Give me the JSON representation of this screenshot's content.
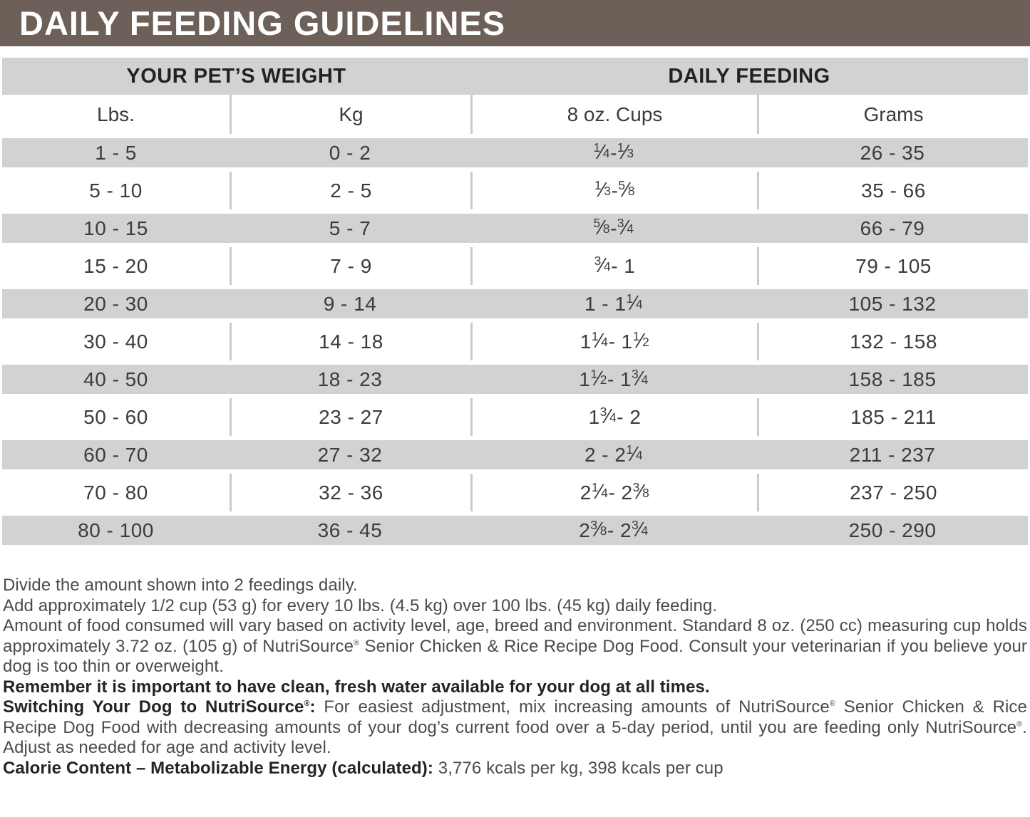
{
  "title": "DAILY FEEDING GUIDELINES",
  "colors": {
    "header_brown": "#6c6058",
    "row_gray": "#d1d2d4",
    "separator_gray": "#c9cacc",
    "title_text": "#ffffff"
  },
  "table": {
    "group_headers": [
      "YOUR PET’S WEIGHT",
      "DAILY FEEDING"
    ],
    "column_headers": [
      "Lbs.",
      "Kg",
      "8 oz. Cups",
      "Grams"
    ],
    "rows": [
      {
        "lbs": "1 - 5",
        "kg": "0 - 2",
        "cups": "1/4 - 1/3",
        "grams": "26 - 35"
      },
      {
        "lbs": "5 - 10",
        "kg": "2 - 5",
        "cups": "1/3 - 5/8",
        "grams": "35 - 66"
      },
      {
        "lbs": "10 - 15",
        "kg": "5 - 7",
        "cups": "5/8 - 3/4",
        "grams": "66 - 79"
      },
      {
        "lbs": "15 - 20",
        "kg": "7 - 9",
        "cups": "3/4 - 1",
        "grams": "79 - 105"
      },
      {
        "lbs": "20 - 30",
        "kg": "9 - 14",
        "cups": "1 - 1 1/4",
        "grams": "105 - 132"
      },
      {
        "lbs": "30 - 40",
        "kg": "14 - 18",
        "cups": "1 1/4 - 1 1/2",
        "grams": "132 - 158"
      },
      {
        "lbs": "40 - 50",
        "kg": "18 - 23",
        "cups": "1 1/2 - 1 3/4",
        "grams": "158 - 185"
      },
      {
        "lbs": "50 - 60",
        "kg": "23 - 27",
        "cups": "1 3/4 - 2",
        "grams": "185 - 211"
      },
      {
        "lbs": "60 - 70",
        "kg": "27 - 32",
        "cups": "2 - 2 1/4",
        "grams": "211 - 237"
      },
      {
        "lbs": "70 - 80",
        "kg": "32 - 36",
        "cups": "2 1/4 - 2 3/8",
        "grams": "237 - 250"
      },
      {
        "lbs": "80 - 100",
        "kg": "36 - 45",
        "cups": "2 3/8 - 2 3/4",
        "grams": "250 - 290"
      }
    ]
  },
  "notes": {
    "divide": [
      {
        "t": "Divide the amount shown into 2 feedings daily."
      }
    ],
    "add_over": [
      {
        "t": "Add approximately 1/2 cup (53 g) for every 10 lbs. (4.5 kg) over 100 lbs. (45 kg) daily feeding."
      }
    ],
    "amount_vary": [
      {
        "t": "Amount of food consumed will vary based on activity level, age, breed and environment. Standard 8 oz. (250 cc) measuring cup holds approximately 3.72 oz. (105 g) of NutriSource"
      },
      {
        "t": "®",
        "s": "sup"
      },
      {
        "t": " Senior Chicken & Rice Recipe Dog Food. Consult your veterinarian if you believe your dog is too thin or overweight."
      }
    ],
    "remember": [
      {
        "t": "Remember it is important to have clean, fresh water available for your dog at all times.",
        "s": "b"
      }
    ],
    "switching": [
      {
        "t": "Switching Your Dog to NutriSource",
        "s": "b"
      },
      {
        "t": "®",
        "s": "bsup"
      },
      {
        "t": ": ",
        "s": "b"
      },
      {
        "t": "For easiest adjustment, mix increasing amounts of NutriSource"
      },
      {
        "t": "®",
        "s": "sup"
      },
      {
        "t": " Senior Chicken & Rice Recipe Dog Food with decreasing amounts of your dog’s current food over a 5-day period, until you are feeding only NutriSource"
      },
      {
        "t": "®",
        "s": "sup"
      },
      {
        "t": ". Adjust as needed for age and activity level."
      }
    ],
    "calorie": [
      {
        "t": "Calorie Content – Metabolizable Energy (calculated):",
        "s": "b"
      },
      {
        "t": " 3,776 kcals per kg, 398 kcals per cup"
      }
    ]
  }
}
